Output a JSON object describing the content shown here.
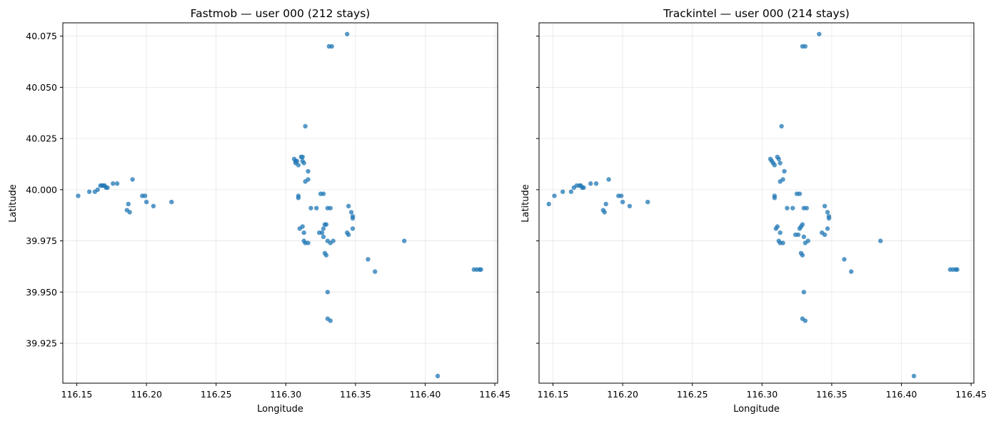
{
  "figure": {
    "point_color": "#1f77b4",
    "grid": true,
    "shared_y": true
  },
  "axes_labels": {
    "x": "Longitude",
    "y": "Latitude",
    "x_ticks": [
      "116.15",
      "116.20",
      "116.25",
      "116.30",
      "116.35",
      "116.40",
      "116.45"
    ],
    "y_ticks": [
      "40.075",
      "40.050",
      "40.025",
      "40.000",
      "39.975",
      "39.950",
      "39.925"
    ]
  },
  "chart_data": [
    {
      "type": "scatter",
      "title": "Fastmob — user 000 (212 stays)",
      "xlabel": "Longitude",
      "ylabel": "Latitude",
      "xlim": [
        116.14,
        116.452
      ],
      "ylim": [
        39.9055,
        40.0815
      ],
      "xticks": [
        116.15,
        116.2,
        116.25,
        116.3,
        116.35,
        116.4,
        116.45
      ],
      "yticks": [
        40.075,
        40.05,
        40.025,
        40.0,
        39.975,
        39.95,
        39.925
      ],
      "series": [
        {
          "color": "#1f77b4",
          "points": [
            [
              116.151,
              39.997
            ],
            [
              116.159,
              39.999
            ],
            [
              116.163,
              39.999
            ],
            [
              116.165,
              40.0
            ],
            [
              116.167,
              40.002
            ],
            [
              116.168,
              40.002
            ],
            [
              116.169,
              40.002
            ],
            [
              116.17,
              40.002
            ],
            [
              116.171,
              40.001
            ],
            [
              116.172,
              40.001
            ],
            [
              116.176,
              40.003
            ],
            [
              116.179,
              40.003
            ],
            [
              116.187,
              39.993
            ],
            [
              116.186,
              39.99
            ],
            [
              116.188,
              39.989
            ],
            [
              116.19,
              40.005
            ],
            [
              116.197,
              39.997
            ],
            [
              116.199,
              39.997
            ],
            [
              116.2,
              39.994
            ],
            [
              116.205,
              39.992
            ],
            [
              116.218,
              39.994
            ],
            [
              116.306,
              40.015
            ],
            [
              116.307,
              40.014
            ],
            [
              116.308,
              40.014
            ],
            [
              116.307,
              40.013
            ],
            [
              116.309,
              40.012
            ],
            [
              116.311,
              40.016
            ],
            [
              116.312,
              40.016
            ],
            [
              116.312,
              40.014
            ],
            [
              116.313,
              40.013
            ],
            [
              116.314,
              40.031
            ],
            [
              116.314,
              40.004
            ],
            [
              116.316,
              40.005
            ],
            [
              116.316,
              40.009
            ],
            [
              116.309,
              39.997
            ],
            [
              116.309,
              39.996
            ],
            [
              116.318,
              39.991
            ],
            [
              116.322,
              39.991
            ],
            [
              116.325,
              39.998
            ],
            [
              116.327,
              39.998
            ],
            [
              116.33,
              39.991
            ],
            [
              116.332,
              39.991
            ],
            [
              116.345,
              39.992
            ],
            [
              116.347,
              39.989
            ],
            [
              116.348,
              39.987
            ],
            [
              116.348,
              39.986
            ],
            [
              116.348,
              39.981
            ],
            [
              116.31,
              39.981
            ],
            [
              116.312,
              39.982
            ],
            [
              116.313,
              39.979
            ],
            [
              116.313,
              39.975
            ],
            [
              116.314,
              39.974
            ],
            [
              116.316,
              39.974
            ],
            [
              116.324,
              39.979
            ],
            [
              116.326,
              39.979
            ],
            [
              116.327,
              39.981
            ],
            [
              116.328,
              39.983
            ],
            [
              116.329,
              39.983
            ],
            [
              116.327,
              39.977
            ],
            [
              116.33,
              39.975
            ],
            [
              116.332,
              39.974
            ],
            [
              116.334,
              39.975
            ],
            [
              116.344,
              39.979
            ],
            [
              116.345,
              39.978
            ],
            [
              116.328,
              39.969
            ],
            [
              116.329,
              39.968
            ],
            [
              116.359,
              39.966
            ],
            [
              116.364,
              39.96
            ],
            [
              116.385,
              39.975
            ],
            [
              116.33,
              39.95
            ],
            [
              116.33,
              39.937
            ],
            [
              116.332,
              39.936
            ],
            [
              116.331,
              40.07
            ],
            [
              116.333,
              40.07
            ],
            [
              116.344,
              40.076
            ],
            [
              116.409,
              39.909
            ],
            [
              116.435,
              39.961
            ],
            [
              116.437,
              39.961
            ],
            [
              116.439,
              39.961
            ],
            [
              116.44,
              39.961
            ]
          ]
        }
      ]
    },
    {
      "type": "scatter",
      "title": "Trackintel — user 000 (214 stays)",
      "xlabel": "Longitude",
      "ylabel": "Latitude",
      "xlim": [
        116.14,
        116.452
      ],
      "ylim": [
        39.9055,
        40.0815
      ],
      "xticks": [
        116.15,
        116.2,
        116.25,
        116.3,
        116.35,
        116.4,
        116.45
      ],
      "yticks": [
        40.075,
        40.05,
        40.025,
        40.0,
        39.975,
        39.95,
        39.925
      ],
      "series": [
        {
          "color": "#1f77b4",
          "points": [
            [
              116.147,
              39.993
            ],
            [
              116.151,
              39.997
            ],
            [
              116.157,
              39.999
            ],
            [
              116.163,
              39.999
            ],
            [
              116.165,
              40.001
            ],
            [
              116.167,
              40.002
            ],
            [
              116.169,
              40.002
            ],
            [
              116.17,
              40.002
            ],
            [
              116.171,
              40.001
            ],
            [
              116.172,
              40.001
            ],
            [
              116.177,
              40.003
            ],
            [
              116.181,
              40.003
            ],
            [
              116.186,
              39.99
            ],
            [
              116.187,
              39.989
            ],
            [
              116.188,
              39.993
            ],
            [
              116.19,
              40.005
            ],
            [
              116.197,
              39.997
            ],
            [
              116.199,
              39.997
            ],
            [
              116.2,
              39.994
            ],
            [
              116.205,
              39.992
            ],
            [
              116.218,
              39.994
            ],
            [
              116.306,
              40.015
            ],
            [
              116.307,
              40.014
            ],
            [
              116.308,
              40.013
            ],
            [
              116.309,
              40.012
            ],
            [
              116.311,
              40.016
            ],
            [
              116.312,
              40.015
            ],
            [
              116.313,
              40.013
            ],
            [
              116.314,
              40.031
            ],
            [
              116.313,
              40.004
            ],
            [
              116.315,
              40.005
            ],
            [
              116.316,
              40.009
            ],
            [
              116.309,
              39.997
            ],
            [
              116.309,
              39.996
            ],
            [
              116.318,
              39.991
            ],
            [
              116.322,
              39.991
            ],
            [
              116.325,
              39.998
            ],
            [
              116.327,
              39.998
            ],
            [
              116.33,
              39.991
            ],
            [
              116.332,
              39.991
            ],
            [
              116.345,
              39.992
            ],
            [
              116.347,
              39.989
            ],
            [
              116.348,
              39.987
            ],
            [
              116.348,
              39.986
            ],
            [
              116.347,
              39.981
            ],
            [
              116.31,
              39.981
            ],
            [
              116.311,
              39.982
            ],
            [
              116.313,
              39.979
            ],
            [
              116.312,
              39.975
            ],
            [
              116.313,
              39.974
            ],
            [
              116.315,
              39.974
            ],
            [
              116.324,
              39.978
            ],
            [
              116.326,
              39.978
            ],
            [
              116.327,
              39.981
            ],
            [
              116.328,
              39.982
            ],
            [
              116.329,
              39.983
            ],
            [
              116.33,
              39.977
            ],
            [
              116.331,
              39.974
            ],
            [
              116.333,
              39.975
            ],
            [
              116.343,
              39.979
            ],
            [
              116.345,
              39.978
            ],
            [
              116.328,
              39.969
            ],
            [
              116.329,
              39.968
            ],
            [
              116.359,
              39.966
            ],
            [
              116.364,
              39.96
            ],
            [
              116.385,
              39.975
            ],
            [
              116.33,
              39.95
            ],
            [
              116.329,
              39.937
            ],
            [
              116.331,
              39.936
            ],
            [
              116.329,
              40.07
            ],
            [
              116.331,
              40.07
            ],
            [
              116.341,
              40.076
            ],
            [
              116.409,
              39.909
            ],
            [
              116.435,
              39.961
            ],
            [
              116.437,
              39.961
            ],
            [
              116.439,
              39.961
            ],
            [
              116.44,
              39.961
            ]
          ]
        }
      ]
    }
  ]
}
